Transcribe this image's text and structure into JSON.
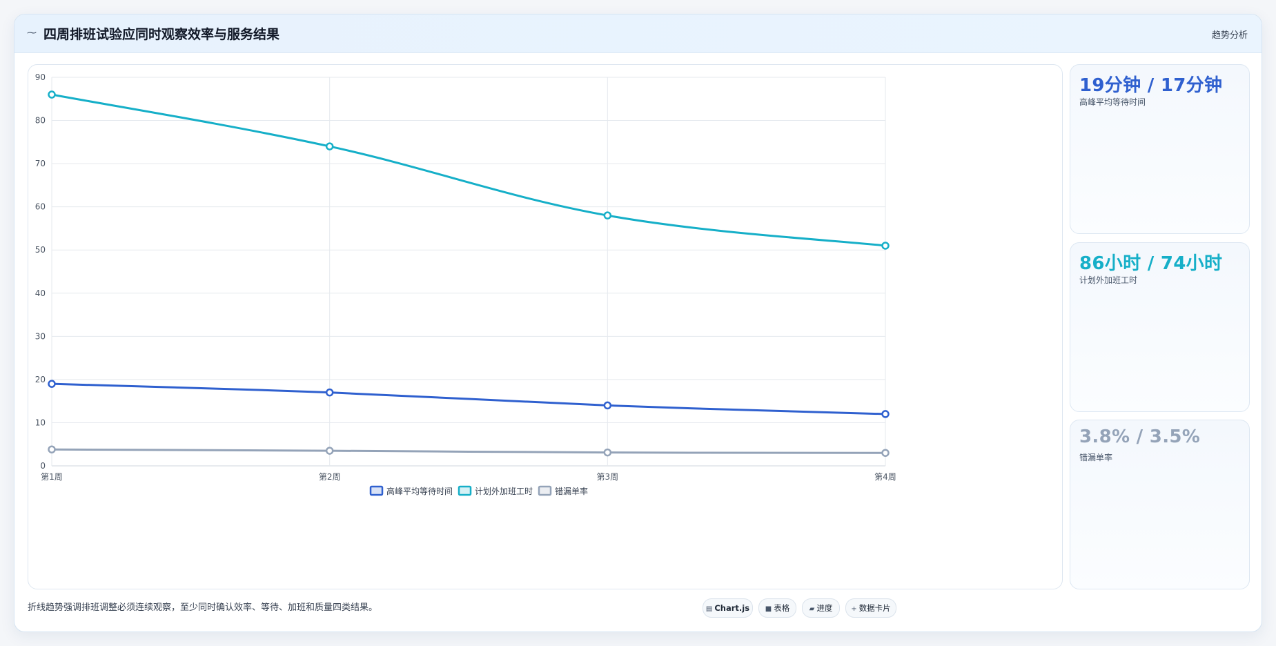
{
  "header": {
    "title": "四周排班试验应同时观察效率与服务结果",
    "tag": "趋势分析"
  },
  "chart_data": {
    "type": "line",
    "categories": [
      "第1周",
      "第2周",
      "第3周",
      "第4周"
    ],
    "series": [
      {
        "name": "高峰平均等待时间",
        "values": [
          19,
          17,
          14,
          12
        ],
        "color": "#2f60cf"
      },
      {
        "name": "计划外加班工时",
        "values": [
          86,
          74,
          58,
          51
        ],
        "color": "#16afc8"
      },
      {
        "name": "错漏单率",
        "values": [
          3.8,
          3.5,
          3.1,
          3.0
        ],
        "color": "#94a3b8"
      }
    ],
    "ylim": [
      0,
      90
    ],
    "yticks": [
      0,
      10,
      20,
      30,
      40,
      50,
      60,
      70,
      80,
      90
    ],
    "grid": true,
    "legend": "bottom-center"
  },
  "kpis": [
    {
      "value": "19分钟 / 17分钟",
      "label": "高峰平均等待时间",
      "color": "#2f60cf"
    },
    {
      "value": "86小时 / 74小时",
      "label": "计划外加班工时",
      "color": "#16afc8"
    },
    {
      "value": "3.8% / 3.5%",
      "label": "错漏单率",
      "color": "#94a3b8"
    }
  ],
  "footer": {
    "note": "折线趋势强调排班调整必须连续观察，至少同时确认效率、等待、加班和质量四类结果。",
    "chips": [
      {
        "icon": "chart-icon",
        "glyph": "▤",
        "label": "Chart.js",
        "bold": true
      },
      {
        "icon": "table-icon",
        "glyph": "■",
        "label": "表格",
        "bold": false
      },
      {
        "icon": "progress-icon",
        "glyph": "▰",
        "label": "进度",
        "bold": false
      },
      {
        "icon": "plus-icon",
        "glyph": "+",
        "label": "数据卡片",
        "bold": false
      }
    ]
  }
}
